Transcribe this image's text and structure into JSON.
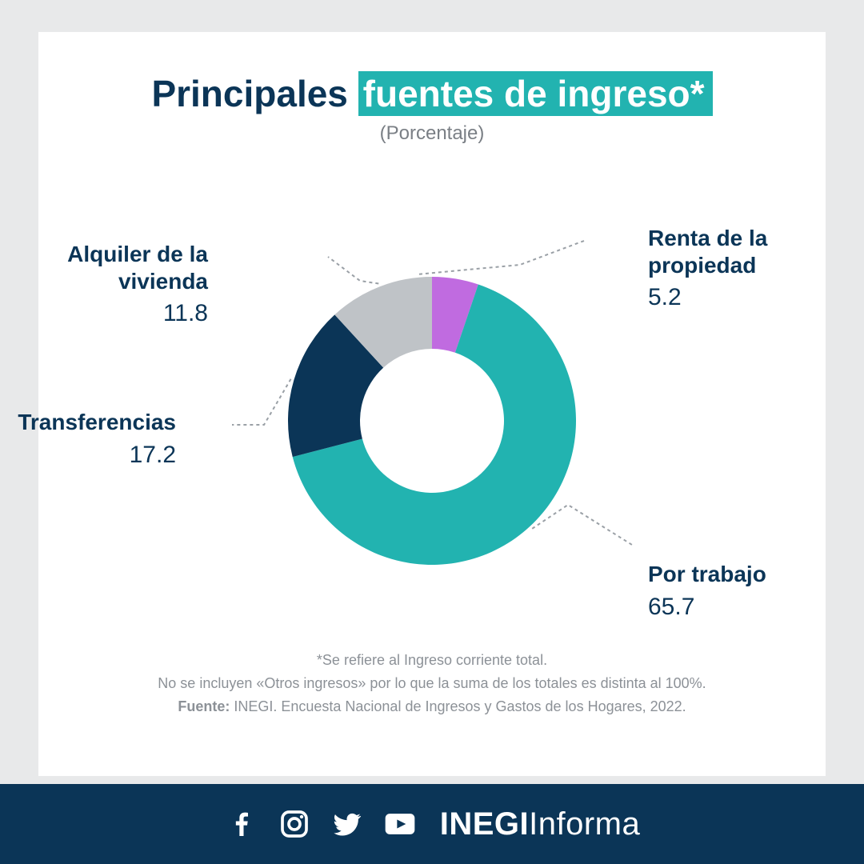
{
  "title": {
    "plain": "Principales",
    "highlight": "fuentes de ingreso*",
    "subtitle": "(Porcentaje)",
    "title_fontsize": 46,
    "title_color": "#0b3557",
    "highlight_bg": "#22b3b0",
    "highlight_color": "#ffffff",
    "subtitle_color": "#7a7f85",
    "subtitle_fontsize": 24
  },
  "chart": {
    "type": "donut",
    "background_color": "#ffffff",
    "outer_radius": 180,
    "inner_radius": 90,
    "start_angle_deg": 0,
    "label_fontsize_name": 28,
    "label_fontsize_value": 30,
    "label_color": "#0b3557",
    "leader_color": "#9aa0a6",
    "leader_dash": "4 4",
    "slices": [
      {
        "key": "renta",
        "label": "Renta de la\npropiedad",
        "value": 5.2,
        "color": "#c06be0"
      },
      {
        "key": "por_trabajo",
        "label": "Por trabajo",
        "value": 65.7,
        "color": "#22b3b0"
      },
      {
        "key": "transferencias",
        "label": "Transferencias",
        "value": 17.2,
        "color": "#0b3557"
      },
      {
        "key": "alquiler",
        "label": "Alquiler de la\nvivienda",
        "value": 11.8,
        "color": "#bfc3c7"
      }
    ]
  },
  "footnotes": {
    "line1": "*Se refiere al Ingreso corriente total.",
    "line2": "No se incluyen «Otros ingresos» por lo que la suma de los totales es distinta al 100%.",
    "source_label": "Fuente:",
    "source_text": " INEGI. Encuesta Nacional de Ingresos y Gastos de los Hogares, 2022.",
    "color": "#8c9197",
    "fontsize": 18
  },
  "footer": {
    "background": "#0b3557",
    "brand_bold": "INEGI",
    "brand_light": "Informa",
    "icons": [
      "facebook",
      "instagram",
      "twitter",
      "youtube"
    ]
  }
}
